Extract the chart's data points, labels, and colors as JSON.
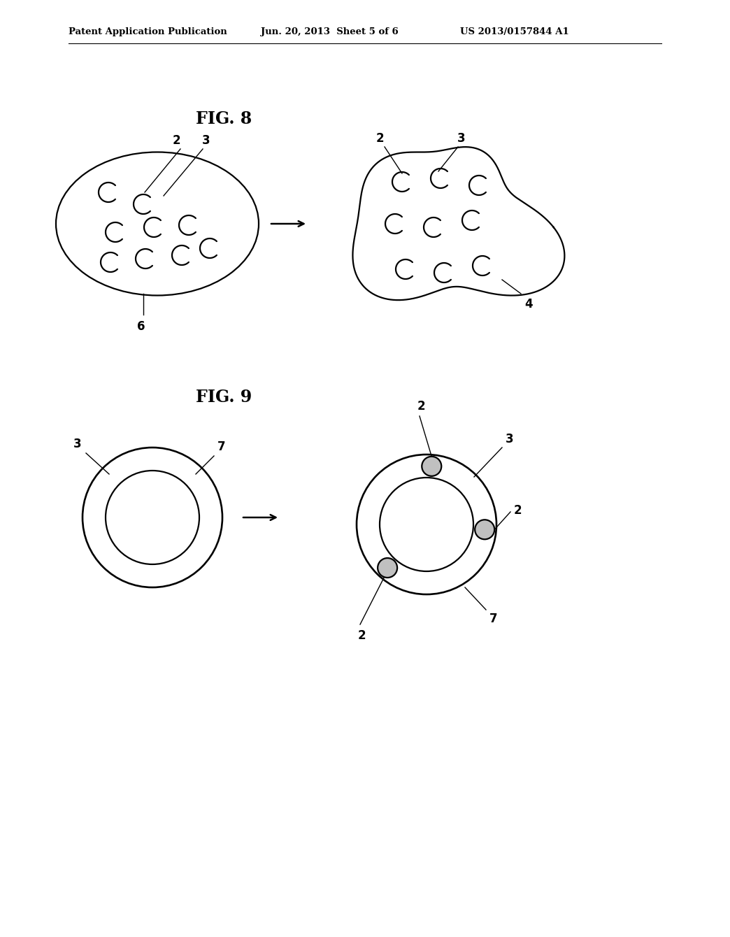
{
  "bg_color": "#ffffff",
  "text_color": "#000000",
  "header_left": "Patent Application Publication",
  "header_center": "Jun. 20, 2013  Sheet 5 of 6",
  "header_right": "US 2013/0157844 A1",
  "fig8_title": "FIG. 8",
  "fig9_title": "FIG. 9",
  "line_color": "#000000",
  "line_width": 1.6,
  "shaded_fill": "#c0c0c0"
}
